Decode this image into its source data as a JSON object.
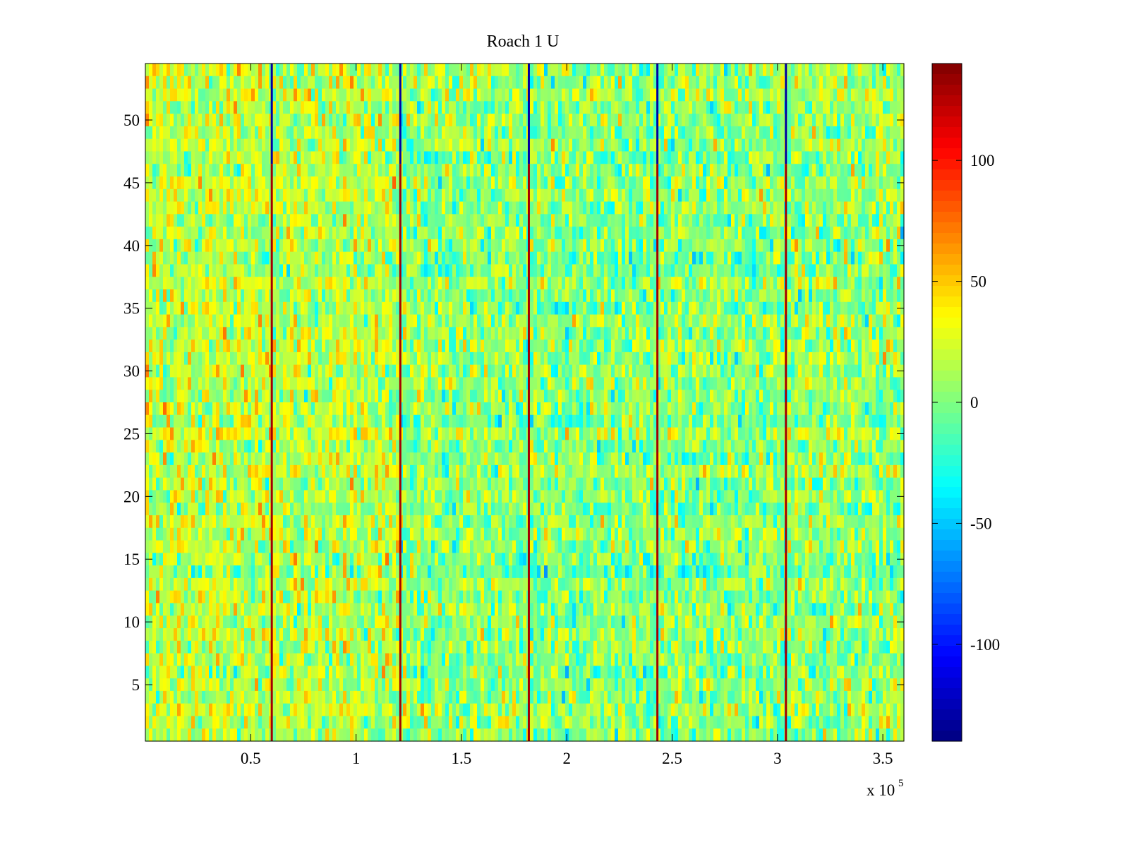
{
  "chart_data": {
    "type": "heatmap",
    "title": "Roach 1 U",
    "xlabel": "",
    "ylabel": "",
    "x_range": [
      0,
      360000
    ],
    "y_range": [
      0.5,
      54.5
    ],
    "x_ticks": [
      50000,
      100000,
      150000,
      200000,
      250000,
      300000,
      350000
    ],
    "x_tick_labels": [
      "0.5",
      "1",
      "1.5",
      "2",
      "2.5",
      "3",
      "3.5"
    ],
    "x_exponent_label": {
      "base": "x 10",
      "exponent": "5"
    },
    "y_ticks": [
      5,
      10,
      15,
      20,
      25,
      30,
      35,
      40,
      45,
      50
    ],
    "y_tick_labels": [
      "5",
      "10",
      "15",
      "20",
      "25",
      "30",
      "35",
      "40",
      "45",
      "50"
    ],
    "rows": 54,
    "colormap": "jet",
    "color_range": [
      -140,
      140
    ],
    "colorbar": {
      "ticks": [
        -100,
        -50,
        0,
        50,
        100
      ],
      "tick_labels": [
        "-100",
        "-50",
        "0",
        "50",
        "100"
      ],
      "colors": [
        "#00008f",
        "#0000ff",
        "#00ffff",
        "#ffff00",
        "#ff0000",
        "#800000"
      ]
    },
    "background_mean": 10,
    "background_spread": 30,
    "segment_means": [
      {
        "x_start": 0,
        "x_end": 60000,
        "mean": 18
      },
      {
        "x_start": 60000,
        "x_end": 121000,
        "mean": 16
      },
      {
        "x_start": 121000,
        "x_end": 182000,
        "mean": 4
      },
      {
        "x_start": 182000,
        "x_end": 243000,
        "mean": 2
      },
      {
        "x_start": 243000,
        "x_end": 304000,
        "mean": 3
      },
      {
        "x_start": 304000,
        "x_end": 360000,
        "mean": 6
      }
    ],
    "stripes": [
      {
        "x": 60000,
        "value_upper": -130,
        "value_lower": 130,
        "split_row": 46
      },
      {
        "x": 121000,
        "value_upper": -130,
        "value_lower": 130,
        "split_row": 46
      },
      {
        "x": 182000,
        "value_upper": -130,
        "value_lower": 130,
        "split_row": 46
      },
      {
        "x": 243000,
        "value_upper": -130,
        "value_lower": 130,
        "split_row": 46
      },
      {
        "x": 304000,
        "value_upper": -130,
        "value_lower": 130,
        "split_row": 46
      }
    ]
  }
}
